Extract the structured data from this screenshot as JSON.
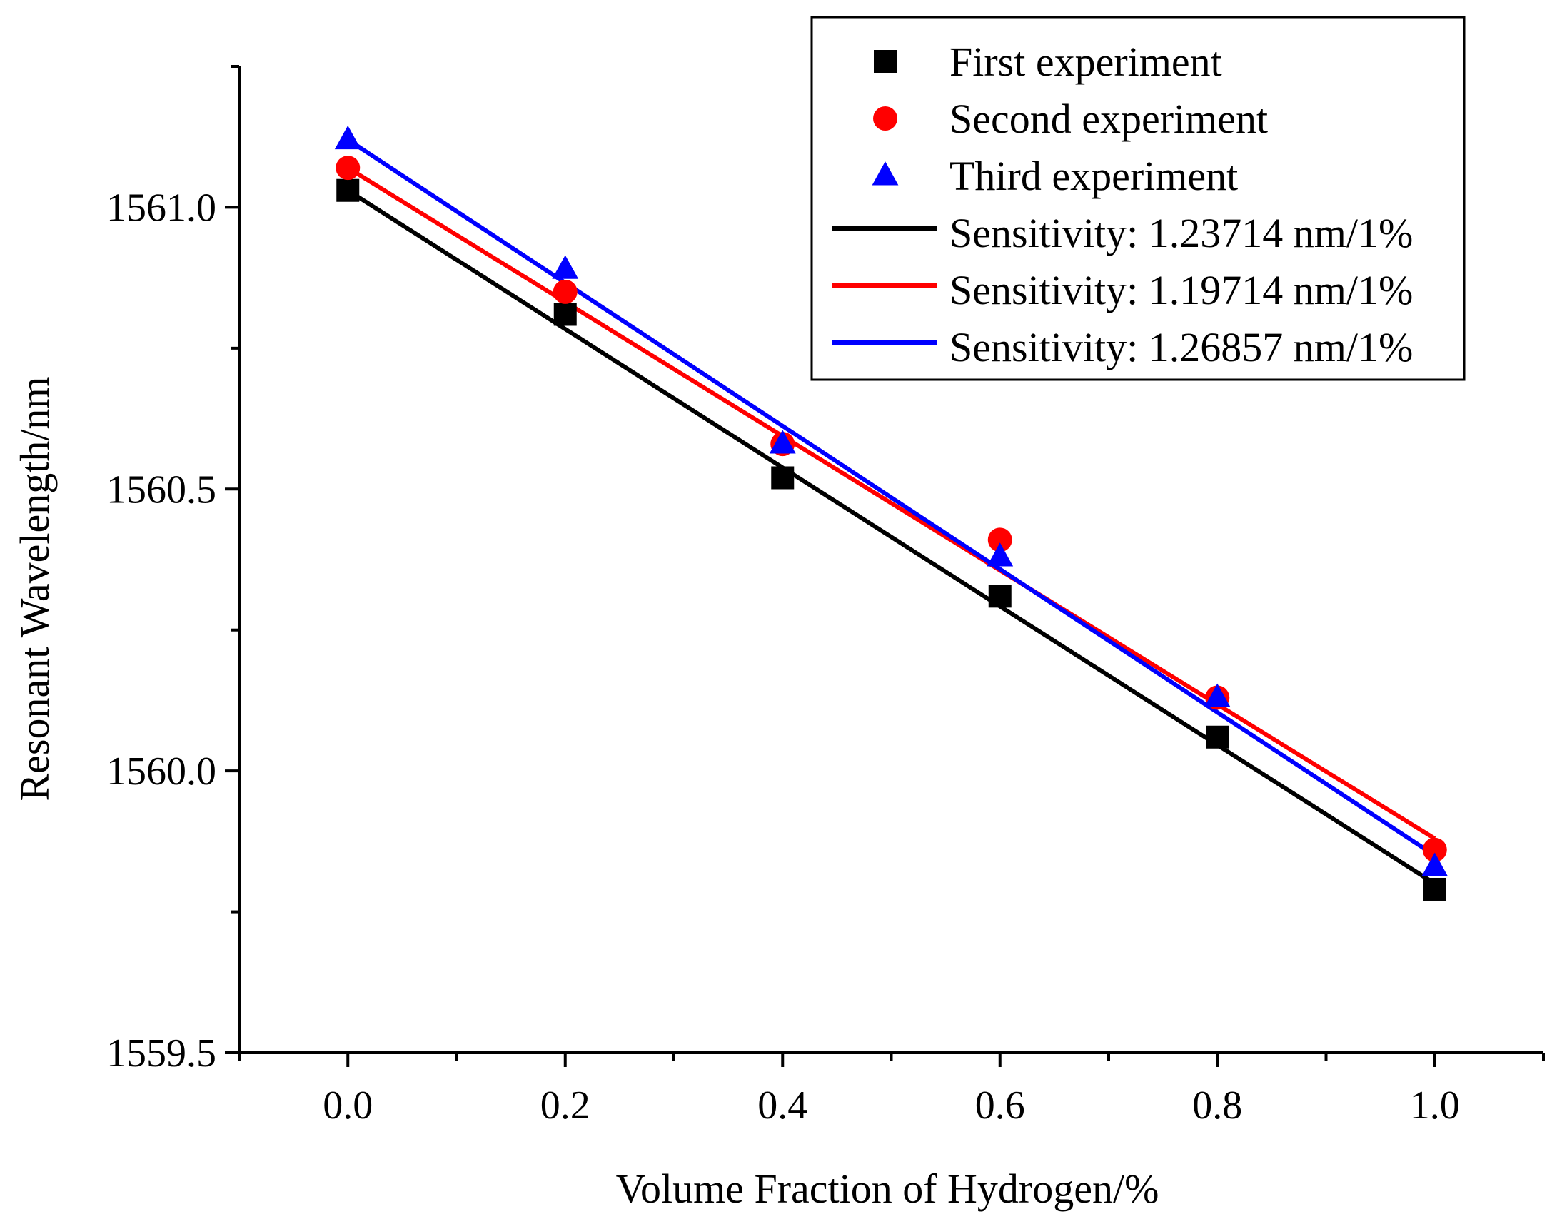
{
  "chart_data": {
    "type": "scatter",
    "title": "",
    "xlabel": "Volume Fraction of Hydrogen/%",
    "ylabel": "Resonant Wavelength/nm",
    "xlim": [
      -0.1,
      1.1
    ],
    "ylim": [
      1559.5,
      1561.25
    ],
    "x_ticks": [
      0.0,
      0.2,
      0.4,
      0.6,
      0.8,
      1.0
    ],
    "x_tick_labels": [
      "0.0",
      "0.2",
      "0.4",
      "0.6",
      "0.8",
      "1.0"
    ],
    "y_ticks": [
      1559.5,
      1560.0,
      1560.5,
      1561.0
    ],
    "y_tick_labels": [
      "1559.5",
      "1560.0",
      "1560.5",
      "1561.0"
    ],
    "grid": false,
    "legend_position": "top-right",
    "series": [
      {
        "name": "First experiment",
        "marker": "square",
        "color": "#000000",
        "x": [
          0.0,
          0.2,
          0.4,
          0.6,
          0.8,
          1.0
        ],
        "y": [
          1561.03,
          1560.81,
          1560.52,
          1560.31,
          1560.06,
          1559.79
        ]
      },
      {
        "name": "Second experiment",
        "marker": "circle",
        "color": "#ff0000",
        "x": [
          0.0,
          0.2,
          0.4,
          0.6,
          0.8,
          1.0
        ],
        "y": [
          1561.07,
          1560.85,
          1560.58,
          1560.41,
          1560.13,
          1559.86
        ]
      },
      {
        "name": "Third experiment",
        "marker": "triangle",
        "color": "#0000ff",
        "x": [
          0.0,
          0.2,
          0.4,
          0.6,
          0.8,
          1.0
        ],
        "y": [
          1561.12,
          1560.89,
          1560.58,
          1560.38,
          1560.13,
          1559.83
        ]
      }
    ],
    "fits": [
      {
        "name": "Sensitivity: 1.23714 nm/1%",
        "color": "#000000",
        "x": [
          0.0,
          1.0
        ],
        "y": [
          1561.03,
          1559.8
        ]
      },
      {
        "name": "Sensitivity: 1.19714 nm/1%",
        "color": "#ff0000",
        "x": [
          0.0,
          1.0
        ],
        "y": [
          1561.07,
          1559.88
        ]
      },
      {
        "name": "Sensitivity: 1.26857 nm/1%",
        "color": "#0000ff",
        "x": [
          0.0,
          1.0
        ],
        "y": [
          1561.12,
          1559.85
        ]
      }
    ]
  }
}
